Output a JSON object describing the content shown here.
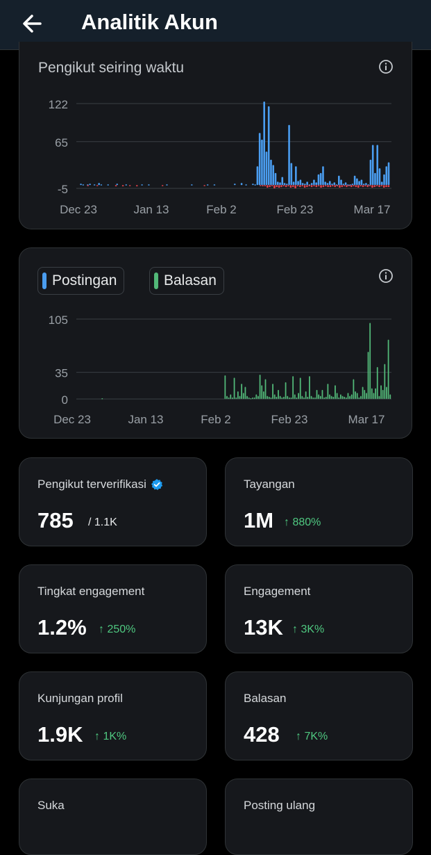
{
  "header": {
    "title": "Analitik Akun"
  },
  "followers_chart": {
    "title": "Pengikut seiring waktu",
    "colors": {
      "gain": "#4a9df0",
      "loss": "#e0424b"
    }
  },
  "activity_chart": {
    "legend": [
      {
        "label": "Postingan",
        "color": "#4a9df0"
      },
      {
        "label": "Balasan",
        "color": "#52b878"
      }
    ]
  },
  "chart_data": [
    {
      "type": "bar",
      "x_tick_labels": [
        "Dec 23",
        "Jan 13",
        "Feb 2",
        "Feb 23",
        "Mar 17"
      ],
      "y_tick_labels": [
        "122",
        "65",
        "-5"
      ],
      "ylim": [
        -5,
        122
      ],
      "grid": true,
      "series": [
        {
          "values": [
            0,
            2,
            1,
            0,
            1,
            2,
            0,
            1,
            0,
            3,
            1,
            0,
            0,
            1,
            0,
            0,
            0,
            2,
            0,
            0,
            0,
            1,
            0,
            0,
            0,
            0,
            0,
            0,
            1,
            0,
            0,
            1,
            0,
            0,
            0,
            0,
            0,
            0,
            0,
            1,
            0,
            0,
            0,
            0,
            0,
            0,
            0,
            0,
            0,
            0,
            1,
            0,
            0,
            0,
            0,
            0,
            0,
            1,
            0,
            0,
            1,
            0,
            0,
            0,
            0,
            0,
            0,
            0,
            0,
            2,
            0,
            0,
            3,
            0,
            1,
            0,
            0,
            2,
            1,
            28,
            78,
            68,
            125,
            50,
            118,
            38,
            30,
            18,
            5,
            4,
            12,
            3,
            2,
            90,
            33,
            5,
            28,
            6,
            8,
            3,
            2,
            5,
            1,
            3,
            8,
            4,
            16,
            18,
            28,
            5,
            3,
            6,
            2,
            4,
            1,
            14,
            8,
            2,
            4,
            1,
            1,
            2,
            14,
            10,
            6,
            8,
            2,
            3,
            1,
            38,
            60,
            18,
            60,
            25,
            5,
            16,
            28,
            34
          ]
        },
        {
          "values": [
            0,
            0,
            0,
            0,
            -1,
            0,
            0,
            0,
            -1,
            0,
            0,
            0,
            0,
            0,
            0,
            0,
            -2,
            0,
            0,
            -2,
            0,
            0,
            -1,
            0,
            0,
            -2,
            0,
            0,
            0,
            0,
            0,
            0,
            0,
            0,
            0,
            0,
            -1,
            0,
            0,
            0,
            0,
            0,
            0,
            0,
            0,
            0,
            0,
            0,
            0,
            0,
            0,
            0,
            0,
            0,
            -1,
            0,
            0,
            0,
            0,
            0,
            0,
            0,
            0,
            0,
            0,
            0,
            0,
            0,
            0,
            0,
            0,
            0,
            0,
            0,
            0,
            0,
            0,
            0,
            -1,
            -2,
            -2,
            -4,
            -3,
            -2,
            -5,
            -3,
            -4,
            -3,
            -2,
            -3,
            -2,
            -4,
            -3,
            -5,
            -2,
            -3,
            -2,
            -4,
            -3,
            -2,
            -3,
            -2,
            -3,
            -2,
            -4,
            -3,
            -2,
            -3,
            -3,
            -2,
            -3,
            -2,
            -4,
            -3,
            -2,
            -3,
            -2,
            -3,
            -2,
            -3,
            -4,
            -2,
            -3,
            -2,
            -3,
            -2,
            -4,
            -3,
            -2,
            -3,
            -2,
            -4,
            -3,
            -3
          ]
        }
      ]
    },
    {
      "type": "bar",
      "x_tick_labels": [
        "Dec 23",
        "Jan 13",
        "Feb 2",
        "Feb 23",
        "Mar 17"
      ],
      "y_tick_labels": [
        "105",
        "35",
        "0"
      ],
      "ylim": [
        0,
        105
      ],
      "grid": true,
      "series": [
        {
          "name": "Postingan",
          "values": []
        },
        {
          "name": "Balasan",
          "values": [
            0,
            0,
            0,
            0,
            0,
            0,
            0,
            0,
            0,
            0,
            0,
            0,
            0,
            1,
            0,
            0,
            0,
            0,
            0,
            0,
            0,
            0,
            0,
            0,
            0,
            0,
            0,
            0,
            0,
            0,
            0,
            0,
            0,
            0,
            0,
            0,
            0,
            0,
            0,
            0,
            0,
            0,
            0,
            0,
            0,
            0,
            0,
            0,
            0,
            0,
            0,
            0,
            0,
            0,
            0,
            0,
            0,
            0,
            0,
            0,
            0,
            0,
            0,
            0,
            0,
            0,
            0,
            0,
            0,
            0,
            0,
            0,
            0,
            0,
            0,
            0,
            0,
            0,
            0,
            0,
            31,
            4,
            2,
            6,
            2,
            28,
            2,
            10,
            4,
            20,
            8,
            16,
            4,
            2,
            1,
            2,
            2,
            6,
            4,
            32,
            18,
            10,
            26,
            4,
            3,
            2,
            20,
            6,
            3,
            12,
            4,
            2,
            3,
            22,
            4,
            2,
            2,
            30,
            6,
            2,
            8,
            28,
            4,
            2,
            10,
            3,
            30,
            4,
            2,
            2,
            12,
            6,
            4,
            12,
            2,
            3,
            20,
            6,
            4,
            3,
            18,
            8,
            2,
            6,
            4,
            3,
            2,
            8,
            4,
            6,
            26,
            10,
            8,
            2,
            4,
            16,
            12,
            8,
            62,
            100,
            14,
            8,
            14,
            42,
            4,
            18,
            12,
            46,
            16,
            78,
            6
          ]
        }
      ]
    }
  ],
  "stats": [
    {
      "label": "Pengikut terverifikasi",
      "value": "785",
      "sub": "/ 1.1K",
      "verified_icon": "verified-badge-icon"
    },
    {
      "label": "Tayangan",
      "value": "1M",
      "change": "↑ 880%"
    },
    {
      "label": "Tingkat engagement",
      "value": "1.2%",
      "change": "↑ 250%"
    },
    {
      "label": "Engagement",
      "value": "13K",
      "change": "↑ 3K%"
    },
    {
      "label": "Kunjungan profil",
      "value": "1.9K",
      "change": "↑ 1K%"
    },
    {
      "label": "Balasan",
      "value": "428",
      "change": "↑ 7K%"
    },
    {
      "label": "Suka"
    },
    {
      "label": "Posting ulang"
    }
  ]
}
